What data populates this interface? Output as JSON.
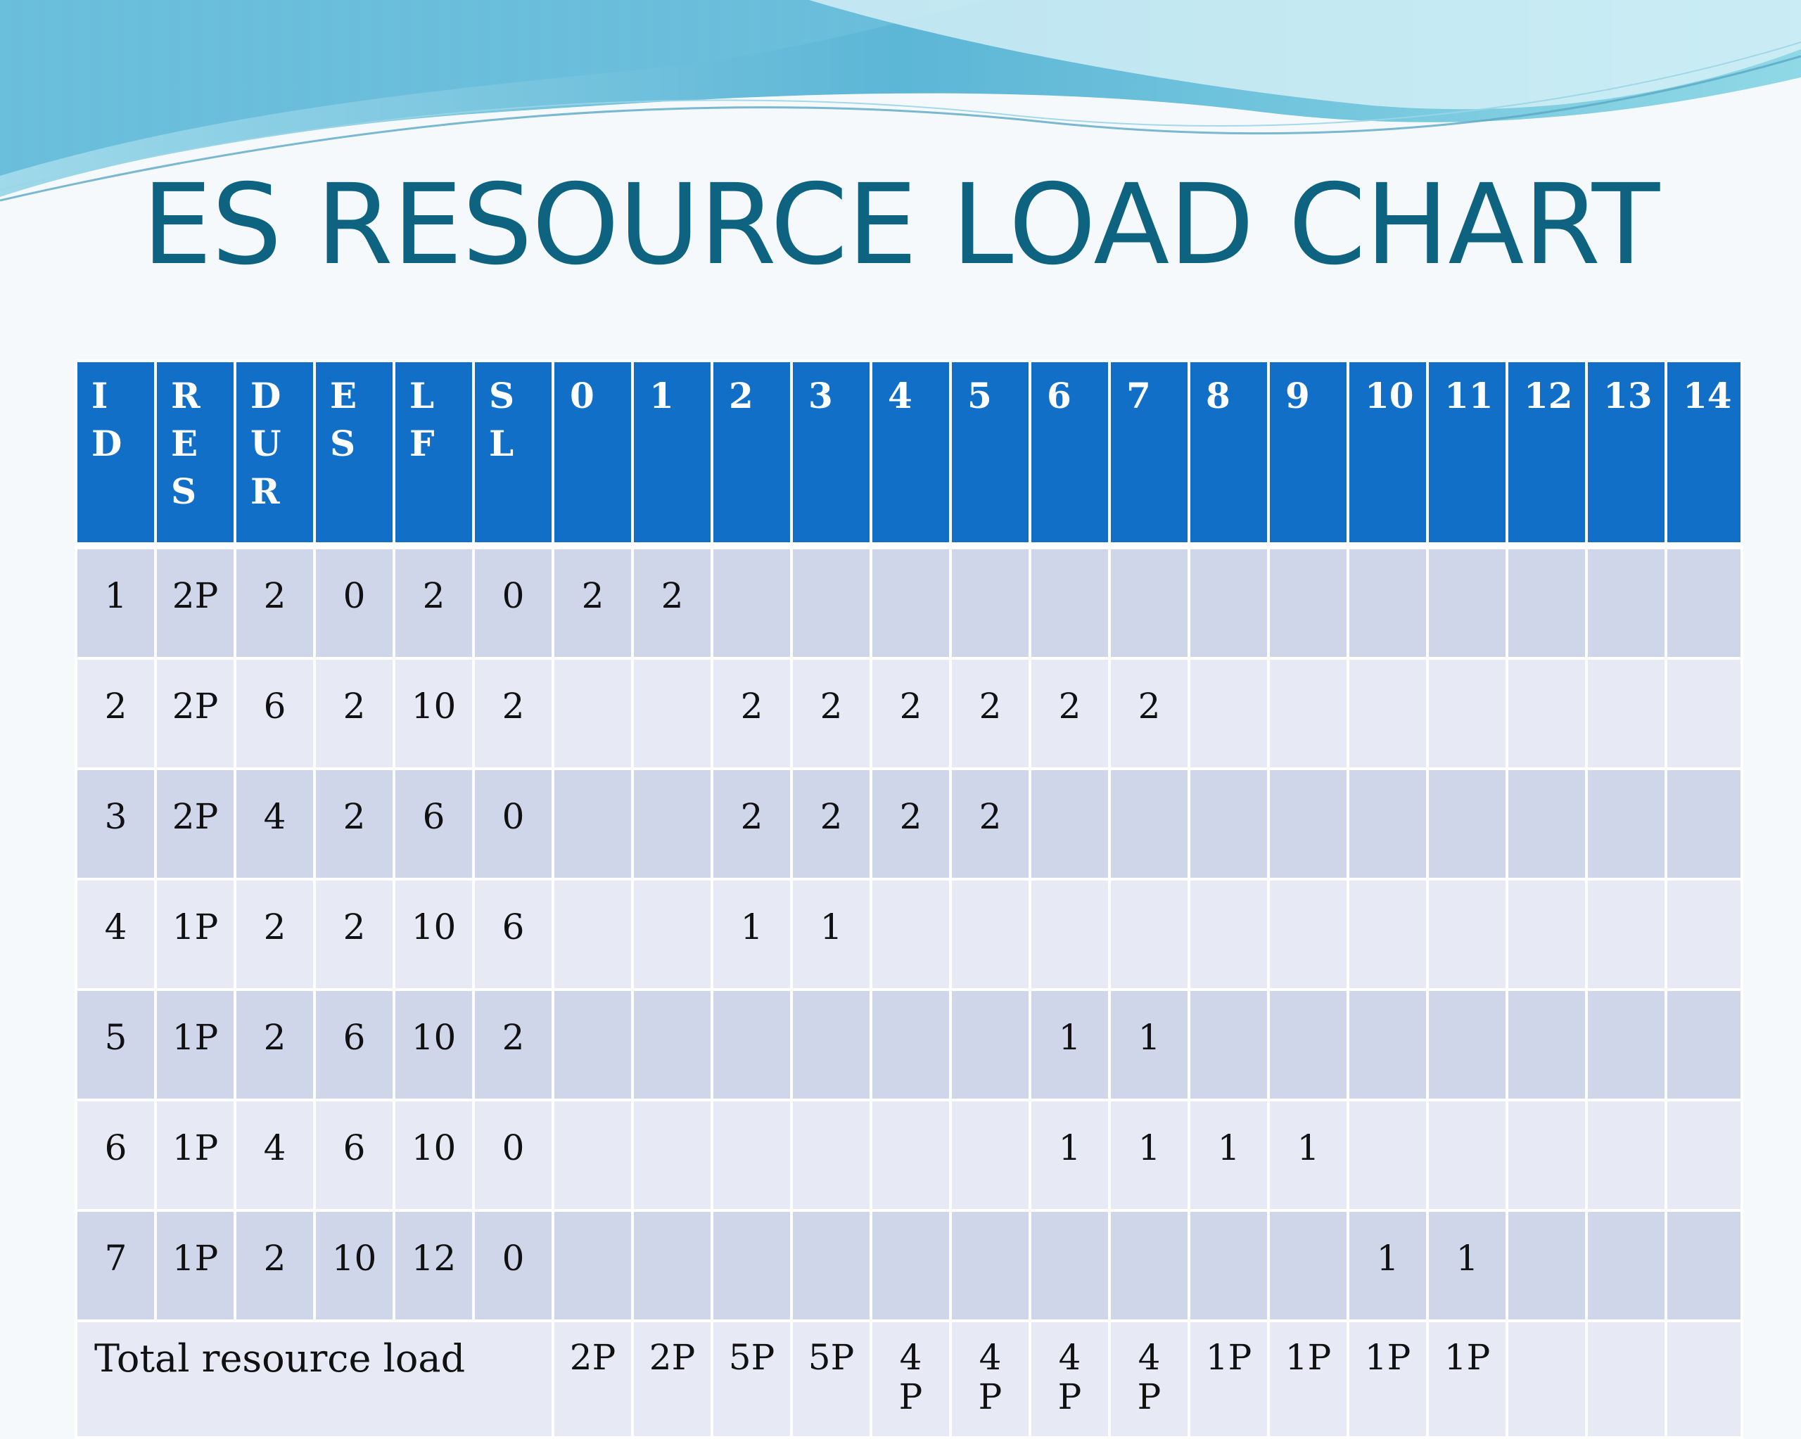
{
  "title": "ES RESOURCE LOAD CHART",
  "colors": {
    "title": "#0e6480",
    "header": "#116fc7",
    "row_odd": "#cfd6ea",
    "row_even": "#e7eaf5"
  },
  "table": {
    "fixed_headers": [
      [
        "I",
        "D"
      ],
      [
        "R",
        "E",
        "S"
      ],
      [
        "D",
        "U",
        "R"
      ],
      [
        "E",
        "S"
      ],
      [
        "L",
        "F"
      ],
      [
        "S",
        "L"
      ]
    ],
    "time_headers": [
      "0",
      "1",
      "2",
      "3",
      "4",
      "5",
      "6",
      "7",
      "8",
      "9",
      "10",
      "11",
      "12",
      "13",
      "14"
    ],
    "rows": [
      {
        "id": "1",
        "res": "2P",
        "dur": "2",
        "es": "0",
        "lf": "2",
        "sl": "0",
        "load": [
          "2",
          "2",
          "",
          "",
          "",
          "",
          "",
          "",
          "",
          "",
          "",
          "",
          "",
          "",
          ""
        ]
      },
      {
        "id": "2",
        "res": "2P",
        "dur": "6",
        "es": "2",
        "lf": "10",
        "sl": "2",
        "load": [
          "",
          "",
          "2",
          "2",
          "2",
          "2",
          "2",
          "2",
          "",
          "",
          "",
          "",
          "",
          "",
          ""
        ]
      },
      {
        "id": "3",
        "res": "2P",
        "dur": "4",
        "es": "2",
        "lf": "6",
        "sl": "0",
        "load": [
          "",
          "",
          "2",
          "2",
          "2",
          "2",
          "",
          "",
          "",
          "",
          "",
          "",
          "",
          "",
          ""
        ]
      },
      {
        "id": "4",
        "res": "1P",
        "dur": "2",
        "es": "2",
        "lf": "10",
        "sl": "6",
        "load": [
          "",
          "",
          "1",
          "1",
          "",
          "",
          "",
          "",
          "",
          "",
          "",
          "",
          "",
          "",
          ""
        ]
      },
      {
        "id": "5",
        "res": "1P",
        "dur": "2",
        "es": "6",
        "lf": "10",
        "sl": "2",
        "load": [
          "",
          "",
          "",
          "",
          "",
          "",
          "1",
          "1",
          "",
          "",
          "",
          "",
          "",
          "",
          ""
        ]
      },
      {
        "id": "6",
        "res": "1P",
        "dur": "4",
        "es": "6",
        "lf": "10",
        "sl": "0",
        "load": [
          "",
          "",
          "",
          "",
          "",
          "",
          "1",
          "1",
          "1",
          "1",
          "",
          "",
          "",
          "",
          ""
        ]
      },
      {
        "id": "7",
        "res": "1P",
        "dur": "2",
        "es": "10",
        "lf": "12",
        "sl": "0",
        "load": [
          "",
          "",
          "",
          "",
          "",
          "",
          "",
          "",
          "",
          "",
          "1",
          "1",
          "",
          "",
          ""
        ]
      }
    ],
    "total_label": "Total resource load",
    "totals": [
      [
        "2P"
      ],
      [
        "2P"
      ],
      [
        "5P"
      ],
      [
        "5P"
      ],
      [
        "4",
        "P"
      ],
      [
        "4",
        "P"
      ],
      [
        "4",
        "P"
      ],
      [
        "4",
        "P"
      ],
      [
        "1P"
      ],
      [
        "1P"
      ],
      [
        "1P"
      ],
      [
        "1P"
      ],
      [
        ""
      ],
      [
        ""
      ],
      [
        ""
      ]
    ]
  }
}
